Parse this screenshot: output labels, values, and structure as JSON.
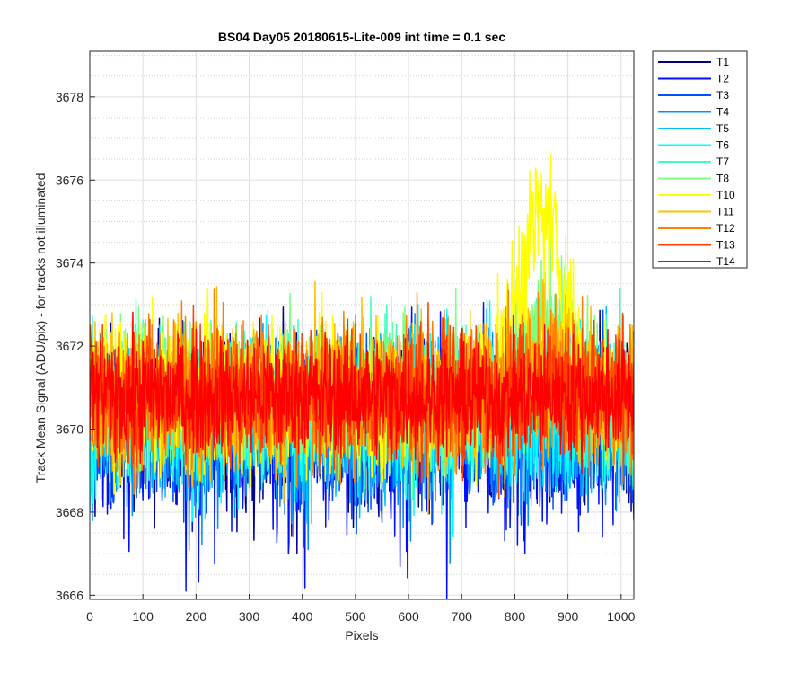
{
  "chart_data": {
    "type": "line",
    "title": "BS04 Day05 20180615-Lite-009 int time = 0.1 sec",
    "xlabel": "Pixels",
    "ylabel": "Track Mean Signal (ADU/pix) - for tracks not illuminated",
    "xlim": [
      0,
      1024
    ],
    "ylim": [
      3665.9,
      3679.1
    ],
    "xticks": [
      0,
      100,
      200,
      300,
      400,
      500,
      600,
      700,
      800,
      900,
      1000
    ],
    "yticks": [
      3666,
      3668,
      3670,
      3672,
      3674,
      3676,
      3678
    ],
    "grid": true,
    "minor_grid": true,
    "legend_position": "outside-top-right",
    "series": [
      {
        "name": "T1",
        "color": "#00008f",
        "mean": 3670.3,
        "spread": 1.0,
        "drop": 0.7,
        "bump_height": 0.0,
        "bump_center": 860,
        "bump_width": 55
      },
      {
        "name": "T2",
        "color": "#0010ff",
        "mean": 3670.2,
        "spread": 1.1,
        "drop": 1.0,
        "bump_height": 0.0,
        "bump_center": 860,
        "bump_width": 55
      },
      {
        "name": "T3",
        "color": "#0050ff",
        "mean": 3670.3,
        "spread": 1.0,
        "drop": 0.8,
        "bump_height": 0.0,
        "bump_center": 860,
        "bump_width": 55
      },
      {
        "name": "T4",
        "color": "#0090ff",
        "mean": 3670.3,
        "spread": 1.0,
        "drop": 0.7,
        "bump_height": 0.0,
        "bump_center": 860,
        "bump_width": 55
      },
      {
        "name": "T5",
        "color": "#00bfff",
        "mean": 3670.4,
        "spread": 1.0,
        "drop": 0.6,
        "bump_height": 0.0,
        "bump_center": 860,
        "bump_width": 55
      },
      {
        "name": "T6",
        "color": "#00ffff",
        "mean": 3670.5,
        "spread": 1.0,
        "drop": 0.5,
        "bump_height": 0.0,
        "bump_center": 860,
        "bump_width": 55
      },
      {
        "name": "T7",
        "color": "#40ffbf",
        "mean": 3670.7,
        "spread": 1.0,
        "drop": 0.0,
        "bump_height": 0.5,
        "bump_center": 860,
        "bump_width": 55
      },
      {
        "name": "T8",
        "color": "#80ff80",
        "mean": 3670.8,
        "spread": 1.0,
        "drop": 0.0,
        "bump_height": 2.0,
        "bump_center": 860,
        "bump_width": 55
      },
      {
        "name": "T10",
        "color": "#ffff00",
        "mean": 3670.8,
        "spread": 1.0,
        "drop": 0.0,
        "bump_height": 4.3,
        "bump_center": 850,
        "bump_width": 60
      },
      {
        "name": "T11",
        "color": "#ffbf00",
        "mean": 3670.8,
        "spread": 1.0,
        "drop": 0.0,
        "bump_height": 0.8,
        "bump_center": 860,
        "bump_width": 55
      },
      {
        "name": "T12",
        "color": "#ff8000",
        "mean": 3670.8,
        "spread": 1.0,
        "drop": 0.0,
        "bump_height": 0.5,
        "bump_center": 860,
        "bump_width": 55
      },
      {
        "name": "T13",
        "color": "#ff4000",
        "mean": 3670.8,
        "spread": 0.9,
        "drop": 0.0,
        "bump_height": 0.3,
        "bump_center": 860,
        "bump_width": 55
      },
      {
        "name": "T14",
        "color": "#ff0000",
        "mean": 3670.8,
        "spread": 0.75,
        "drop": 0.0,
        "bump_height": 0.0,
        "bump_center": 860,
        "bump_width": 55
      }
    ]
  }
}
